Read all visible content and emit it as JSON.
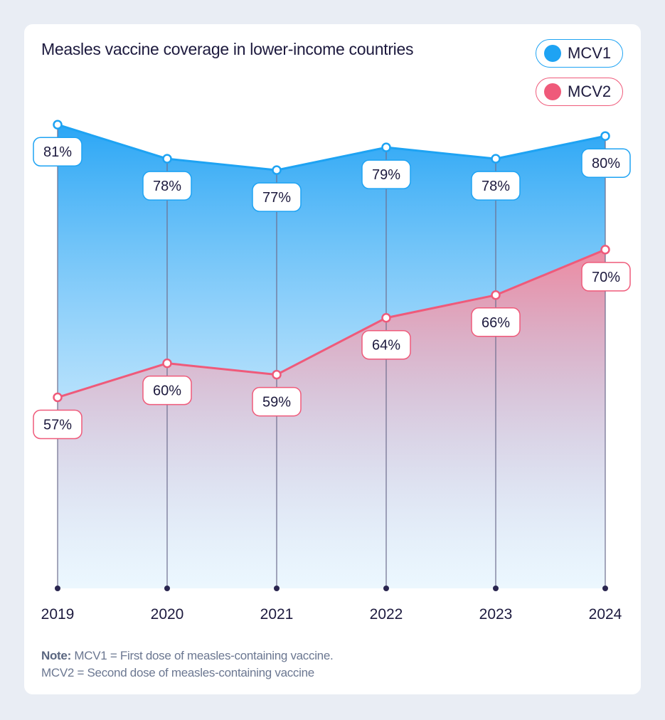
{
  "chart_data": {
    "type": "area",
    "title": "Measles vaccine coverage in lower-income countries",
    "categories": [
      "2019",
      "2020",
      "2021",
      "2022",
      "2023",
      "2024"
    ],
    "series": [
      {
        "name": "MCV1",
        "values": [
          81,
          78,
          77,
          79,
          78,
          80
        ],
        "labels": [
          "81%",
          "78%",
          "77%",
          "79%",
          "78%",
          "80%"
        ],
        "color": "#1ea3f3"
      },
      {
        "name": "MCV2",
        "values": [
          57,
          60,
          59,
          64,
          66,
          70
        ],
        "labels": [
          "57%",
          "60%",
          "59%",
          "64%",
          "66%",
          "70%"
        ],
        "color": "#ef5a7a"
      }
    ],
    "xlabel": "",
    "ylabel": "",
    "ylim": [
      40,
      83
    ],
    "legend": "top-right",
    "grid": false
  },
  "note": {
    "label": "Note:",
    "line1": "MCV1 = First dose of measles-containing vaccine.",
    "line2": "MCV2 = Second dose of measles-containing vaccine"
  },
  "colors": {
    "text": "#1d1a3e",
    "axis": "#5a5a7a",
    "background": "#e9edf4"
  }
}
